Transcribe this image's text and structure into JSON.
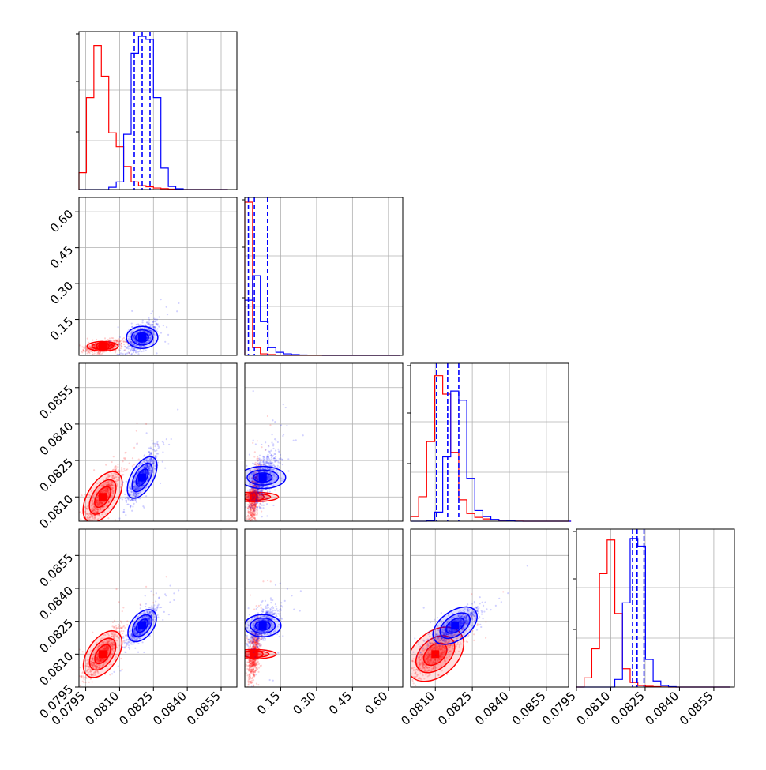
{
  "chart_data": {
    "type": "corner",
    "parameter_count": 4,
    "grid": true,
    "series": [
      {
        "color": "#ff0000",
        "centers": [
          0.08025,
          0.038,
          0.081,
          0.081
        ],
        "spreads": [
          0.0004,
          0.012,
          0.0006,
          0.0006
        ],
        "correlation": 0.85
      },
      {
        "color": "#0000ff",
        "centers": [
          0.082,
          0.075,
          0.0818,
          0.0823
        ],
        "spreads": [
          0.0003,
          0.028,
          0.0005,
          0.0004
        ],
        "correlation": 0.85
      }
    ],
    "quantile_lines": [
      [
        0.08165,
        0.082,
        0.08235
      ],
      [
        0.015,
        0.04,
        0.095
      ],
      [
        0.08105,
        0.0815,
        0.08195
      ],
      [
        0.08195,
        0.08215,
        0.08245
      ]
    ],
    "histograms": [
      {
        "range": [
          0.0792,
          0.0858
        ],
        "red": [
          0.11,
          0.6,
          0.94,
          0.74,
          0.37,
          0.28,
          0.15,
          0.05,
          0.025,
          0.018,
          0.01,
          0.006,
          0.003,
          0.001,
          0.0,
          0.0,
          0.0,
          0.0,
          0.0,
          0.0
        ],
        "blue": [
          0.0,
          0.0,
          0.0,
          0.0,
          0.015,
          0.05,
          0.36,
          0.89,
          1.0,
          0.98,
          0.6,
          0.14,
          0.02,
          0.005,
          0.0,
          0.0,
          0.0,
          0.0,
          0.0,
          0.0
        ]
      },
      {
        "range": [
          0.0,
          0.65
        ],
        "red": [
          1.0,
          0.05,
          0.01,
          0.005,
          0.0,
          0.0,
          0.0,
          0.0,
          0.0,
          0.0,
          0.0,
          0.0,
          0.0,
          0.0,
          0.0,
          0.0,
          0.0,
          0.0,
          0.0,
          0.0
        ],
        "blue": [
          0.36,
          0.52,
          0.22,
          0.05,
          0.02,
          0.01,
          0.005,
          0.003,
          0.002,
          0.001,
          0.0,
          0.0,
          0.0,
          0.0,
          0.0,
          0.0,
          0.0,
          0.0,
          0.0,
          0.0
        ]
      },
      {
        "range": [
          0.08,
          0.0865
        ],
        "red": [
          0.03,
          0.16,
          0.52,
          0.95,
          0.83,
          0.45,
          0.14,
          0.05,
          0.025,
          0.015,
          0.01,
          0.006,
          0.003,
          0.001,
          0.0,
          0.0,
          0.0,
          0.0,
          0.0,
          0.0
        ],
        "blue": [
          0.0,
          0.0,
          0.005,
          0.06,
          0.42,
          0.85,
          0.79,
          0.28,
          0.07,
          0.03,
          0.012,
          0.006,
          0.002,
          0.0,
          0.0,
          0.0,
          0.0,
          0.0,
          0.0,
          0.0
        ],
        "bins": 20
      },
      {
        "range": [
          0.0795,
          0.0862
        ],
        "red": [
          0.0,
          0.06,
          0.25,
          0.74,
          0.96,
          0.48,
          0.12,
          0.03,
          0.01,
          0.005,
          0.003,
          0.001,
          0.0,
          0.0,
          0.0,
          0.0,
          0.0,
          0.0,
          0.0,
          0.0
        ],
        "blue": [
          0.0,
          0.0,
          0.0,
          0.0,
          0.0,
          0.05,
          0.55,
          0.97,
          0.92,
          0.18,
          0.04,
          0.01,
          0.003,
          0.0,
          0.0,
          0.0,
          0.0,
          0.0,
          0.0,
          0.0
        ]
      }
    ],
    "axes": [
      {
        "lim": [
          0.0792,
          0.0862
        ],
        "ticks": [
          0.0795,
          0.081,
          0.0825,
          0.084,
          0.0855
        ],
        "tick_labels": [
          "0.0795",
          "0.0810",
          "0.0825",
          "0.0840",
          "0.0855"
        ]
      },
      {
        "lim": [
          0.0,
          0.66
        ],
        "ticks": [
          0.15,
          0.3,
          0.45,
          0.6
        ],
        "tick_labels": [
          "0.15",
          "0.30",
          "0.45",
          "0.60"
        ]
      },
      {
        "lim": [
          0.08,
          0.0864
        ],
        "ticks": [
          0.081,
          0.0825,
          0.084,
          0.0855
        ],
        "tick_labels": [
          "0.0810",
          "0.0825",
          "0.0840",
          "0.0855"
        ]
      },
      {
        "lim": [
          0.0795,
          0.0864
        ],
        "ticks": [
          0.0795,
          0.081,
          0.0825,
          0.084,
          0.0855
        ],
        "tick_labels": [
          "0.0795",
          "0.0810",
          "0.0825",
          "0.0840",
          "0.0855"
        ]
      }
    ],
    "row_axes": [
      null,
      {
        "lim": [
          0.0,
          0.66
        ],
        "ticks": [
          0.15,
          0.3,
          0.45,
          0.6
        ],
        "tick_labels": [
          "0.15",
          "0.30",
          "0.45",
          "0.60"
        ]
      },
      {
        "lim": [
          0.08,
          0.0865
        ],
        "ticks": [
          0.081,
          0.0825,
          0.084,
          0.0855
        ],
        "tick_labels": [
          "0.0810",
          "0.0825",
          "0.0840",
          "0.0855"
        ]
      },
      {
        "lim": [
          0.0795,
          0.0867
        ],
        "ticks": [
          0.0795,
          0.081,
          0.0825,
          0.084,
          0.0855
        ],
        "tick_labels": [
          "0.0795",
          "0.0810",
          "0.0825",
          "0.0840",
          "0.0855"
        ]
      }
    ]
  }
}
